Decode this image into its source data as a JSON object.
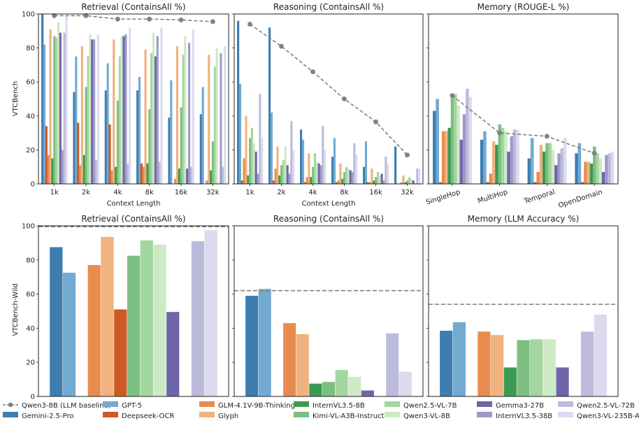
{
  "figure": {
    "row_labels": [
      "VTCBench",
      "VTCBench-Wild"
    ],
    "shared_xlabel": "Context Length"
  },
  "colors": {
    "Gemini-2.5-Pro": "#3d7db0",
    "GPT-5": "#72aad2",
    "Deepseek-OCR": "#cc5a24",
    "GLM-4.1V-9B-Thinking": "#e88c4e",
    "Glyph": "#f0b27e",
    "InternVL3.5-8B": "#3a9a52",
    "Kimi-VL-A3B-Instruct": "#7dbf80",
    "Qwen2.5-VL-7B": "#a4d6a0",
    "Qwen3-VL-8B": "#cdeac4",
    "Gemma3-27B": "#6f66a8",
    "InternVL3.5-38B": "#9e99c8",
    "Qwen2.5-VL-72B": "#bdbbdb",
    "Qwen3-VL-235B-A22B": "#dcdaee",
    "baseline": "#808080"
  },
  "legend": {
    "position": "bottom",
    "columns": [
      [
        "Qwen3-8B (LLM baseline)",
        "Gemini-2.5-Pro"
      ],
      [
        "GPT-5",
        "Deepseek-OCR"
      ],
      [
        "GLM-4.1V-9B-Thinking",
        "Glyph"
      ],
      [
        "InternVL3.5-8B",
        "Kimi-VL-A3B-Instruct"
      ],
      [
        "Qwen2.5-VL-7B",
        "Qwen3-VL-8B"
      ],
      [
        "Gemma3-27B",
        "InternVL3.5-38B"
      ],
      [
        "Qwen2.5-VL-72B",
        "Qwen3-VL-235B-A22B"
      ]
    ]
  },
  "chart_data": [
    {
      "type": "bar",
      "title": "Retrieval (ContainsAll %)",
      "xlabel": "Context Length",
      "ylabel": "VTCBench",
      "ylim": [
        0,
        100
      ],
      "yticks": [
        0,
        20,
        40,
        60,
        80,
        100
      ],
      "categories": [
        "1k",
        "2k",
        "4k",
        "8k",
        "16k",
        "32k"
      ],
      "baseline": {
        "name": "Qwen3-8B (LLM baseline)",
        "style": "dashed-marker",
        "values": [
          99,
          99,
          97,
          97,
          96.5,
          95.5
        ]
      },
      "series": [
        {
          "name": "Gemini-2.5-Pro",
          "values": [
            100,
            54,
            55,
            55,
            39,
            41
          ]
        },
        {
          "name": "GPT-5",
          "values": [
            82,
            75,
            71,
            63,
            61,
            57
          ]
        },
        {
          "name": "Deepseek-OCR",
          "values": [
            34,
            36,
            35,
            12,
            0,
            0
          ]
        },
        {
          "name": "GLM-4.1V-9B-Thinking",
          "values": [
            17,
            11,
            8,
            10,
            3,
            2
          ]
        },
        {
          "name": "Glyph",
          "values": [
            91,
            81,
            85,
            79,
            81,
            76
          ]
        },
        {
          "name": "InternVL3.5-8B",
          "values": [
            15,
            17,
            10,
            12,
            9,
            8
          ]
        },
        {
          "name": "Kimi-VL-A3B-Instruct",
          "values": [
            87,
            57,
            49,
            44,
            45,
            25
          ]
        },
        {
          "name": "Qwen2.5-VL-7B",
          "values": [
            86,
            75,
            75,
            77,
            76,
            69
          ]
        },
        {
          "name": "Qwen3-VL-8B",
          "values": [
            95,
            88,
            87,
            89,
            87,
            80
          ]
        },
        {
          "name": "Gemma3-27B",
          "values": [
            89,
            85,
            87,
            75,
            9,
            0
          ]
        },
        {
          "name": "InternVL3.5-38B",
          "values": [
            20,
            85,
            88,
            87,
            83,
            77
          ]
        },
        {
          "name": "Qwen2.5-VL-72B",
          "values": [
            89,
            14,
            12,
            13,
            10,
            10
          ]
        },
        {
          "name": "Qwen3-VL-235B-A22B",
          "values": [
            99,
            88,
            92,
            92,
            91,
            81
          ]
        }
      ]
    },
    {
      "type": "bar",
      "title": "Reasoning (ContainsAll %)",
      "xlabel": "Context Length",
      "ylim": [
        0,
        100
      ],
      "categories": [
        "1k",
        "2k",
        "4k",
        "8k",
        "16k",
        "32k"
      ],
      "baseline": {
        "name": "Qwen3-8B (LLM baseline)",
        "style": "dashed-marker",
        "values": [
          94,
          81,
          66,
          50,
          36.5,
          17
        ]
      },
      "series": [
        {
          "name": "Gemini-2.5-Pro",
          "values": [
            96,
            92,
            32,
            16,
            10,
            22
          ]
        },
        {
          "name": "GPT-5",
          "values": [
            59,
            42,
            26,
            27,
            25,
            0
          ]
        },
        {
          "name": "Deepseek-OCR",
          "values": [
            2,
            2,
            1,
            1,
            1,
            0
          ]
        },
        {
          "name": "GLM-4.1V-9B-Thinking",
          "values": [
            15,
            9,
            4,
            2,
            1,
            1
          ]
        },
        {
          "name": "Glyph",
          "values": [
            40,
            22,
            18,
            12,
            9,
            5
          ]
        },
        {
          "name": "InternVL3.5-8B",
          "values": [
            5,
            5,
            4,
            3,
            2,
            1
          ]
        },
        {
          "name": "Kimi-VL-A3B-Instruct",
          "values": [
            27,
            11,
            10,
            7,
            4,
            2
          ]
        },
        {
          "name": "Qwen2.5-VL-7B",
          "values": [
            33,
            14,
            18,
            10,
            7,
            4
          ]
        },
        {
          "name": "Qwen3-VL-8B",
          "values": [
            24,
            22,
            13,
            9,
            5,
            3
          ]
        },
        {
          "name": "Gemma3-27B",
          "values": [
            19,
            11,
            12,
            8,
            6,
            2
          ]
        },
        {
          "name": "InternVL3.5-38B",
          "values": [
            6,
            6,
            11,
            7,
            2,
            0
          ]
        },
        {
          "name": "Qwen2.5-VL-72B",
          "values": [
            53,
            37,
            34,
            24,
            16,
            9
          ]
        },
        {
          "name": "Qwen3-VL-235B-A22B",
          "values": [
            27,
            20,
            20,
            17,
            12,
            9
          ]
        }
      ]
    },
    {
      "type": "bar",
      "title": "Memory (ROUGE-L %)",
      "ylim": [
        0,
        100
      ],
      "categories": [
        "SingleHop",
        "MultiHop",
        "Temporal",
        "OpenDomain"
      ],
      "baseline": {
        "name": "Qwen3-8B (LLM baseline)",
        "style": "dashed-marker",
        "values": [
          52,
          30,
          28,
          18
        ]
      },
      "series": [
        {
          "name": "Gemini-2.5-Pro",
          "values": [
            43,
            26,
            15,
            18
          ]
        },
        {
          "name": "GPT-5",
          "values": [
            50,
            31,
            27,
            24
          ]
        },
        {
          "name": "Deepseek-OCR",
          "values": [
            1,
            1,
            1,
            1
          ]
        },
        {
          "name": "GLM-4.1V-9B-Thinking",
          "values": [
            31,
            6,
            7,
            13
          ]
        },
        {
          "name": "Glyph",
          "values": [
            31,
            25,
            23,
            13
          ]
        },
        {
          "name": "InternVL3.5-8B",
          "values": [
            33,
            23,
            19,
            12
          ]
        },
        {
          "name": "Kimi-VL-A3B-Instruct",
          "values": [
            51,
            35,
            24,
            22
          ]
        },
        {
          "name": "Qwen2.5-VL-7B",
          "values": [
            53,
            33,
            24,
            18
          ]
        },
        {
          "name": "Qwen3-VL-8B",
          "values": [
            46,
            31,
            20,
            15
          ]
        },
        {
          "name": "Gemma3-27B",
          "values": [
            26,
            19,
            11,
            7
          ]
        },
        {
          "name": "InternVL3.5-38B",
          "values": [
            41,
            28,
            18,
            17
          ]
        },
        {
          "name": "Qwen2.5-VL-72B",
          "values": [
            56,
            32,
            21,
            18
          ]
        },
        {
          "name": "Qwen3-VL-235B-A22B",
          "values": [
            51,
            32,
            27,
            19
          ]
        }
      ]
    },
    {
      "type": "bar",
      "title": "Retrieval (ContainsAll %)",
      "ylabel": "VTCBench-Wild",
      "ylim": [
        0,
        100
      ],
      "yticks": [
        0,
        20,
        40,
        60,
        80,
        100
      ],
      "baseline": {
        "name": "Qwen3-8B (LLM baseline)",
        "style": "dashed-line",
        "value": 99.5
      },
      "series": [
        {
          "name": "Gemini-2.5-Pro",
          "value": 87.5
        },
        {
          "name": "GPT-5",
          "value": 72.5
        },
        {
          "name": "GLM-4.1V-9B-Thinking",
          "value": 77
        },
        {
          "name": "Glyph",
          "value": 93.5
        },
        {
          "name": "Deepseek-OCR",
          "value": 51
        },
        {
          "name": "Kimi-VL-A3B-Instruct",
          "value": 82.5
        },
        {
          "name": "Qwen2.5-VL-7B",
          "value": 91.5
        },
        {
          "name": "Qwen3-VL-8B",
          "value": 89
        },
        {
          "name": "Gemma3-27B",
          "value": 49.5
        },
        {
          "name": "Qwen2.5-VL-72B",
          "value": 91
        },
        {
          "name": "Qwen3-VL-235B-A22B",
          "value": 97.5
        }
      ]
    },
    {
      "type": "bar",
      "title": "Reasoning (ContainsAll %)",
      "ylim": [
        0,
        100
      ],
      "baseline": {
        "name": "Qwen3-8B (LLM baseline)",
        "style": "dashed-line",
        "value": 62
      },
      "series": [
        {
          "name": "Gemini-2.5-Pro",
          "value": 59
        },
        {
          "name": "GPT-5",
          "value": 63
        },
        {
          "name": "GLM-4.1V-9B-Thinking",
          "value": 43
        },
        {
          "name": "Glyph",
          "value": 36.5
        },
        {
          "name": "InternVL3.5-8B",
          "value": 7.5
        },
        {
          "name": "Kimi-VL-A3B-Instruct",
          "value": 8.5
        },
        {
          "name": "Qwen2.5-VL-7B",
          "value": 15.5
        },
        {
          "name": "Qwen3-VL-8B",
          "value": 11.5
        },
        {
          "name": "Gemma3-27B",
          "value": 3.5
        },
        {
          "name": "Qwen2.5-VL-72B",
          "value": 37
        },
        {
          "name": "Qwen3-VL-235B-A22B",
          "value": 14.5
        }
      ]
    },
    {
      "type": "bar",
      "title": "Memory (LLM Accuracy %)",
      "ylim": [
        0,
        100
      ],
      "baseline": {
        "name": "Qwen3-8B (LLM baseline)",
        "style": "dashed-line",
        "value": 54
      },
      "series": [
        {
          "name": "Gemini-2.5-Pro",
          "value": 38.5
        },
        {
          "name": "GPT-5",
          "value": 43.5
        },
        {
          "name": "GLM-4.1V-9B-Thinking",
          "value": 38
        },
        {
          "name": "Glyph",
          "value": 36
        },
        {
          "name": "InternVL3.5-8B",
          "value": 17
        },
        {
          "name": "Kimi-VL-A3B-Instruct",
          "value": 33
        },
        {
          "name": "Qwen2.5-VL-7B",
          "value": 33.5
        },
        {
          "name": "Qwen3-VL-8B",
          "value": 33.5
        },
        {
          "name": "Gemma3-27B",
          "value": 17
        },
        {
          "name": "Qwen2.5-VL-72B",
          "value": 38
        },
        {
          "name": "Qwen3-VL-235B-A22B",
          "value": 48
        }
      ]
    }
  ]
}
